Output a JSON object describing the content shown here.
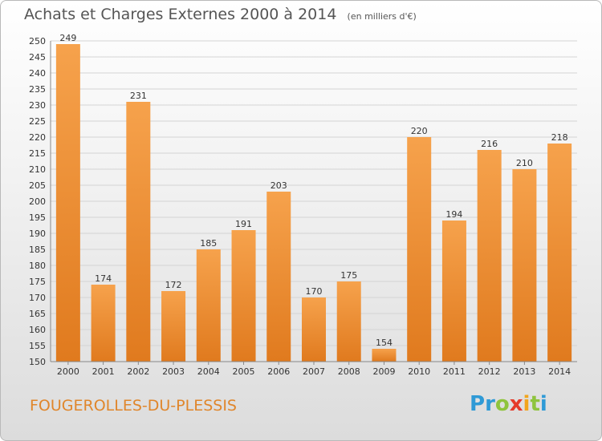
{
  "header": {
    "title": "Achats et Charges Externes 2000 à 2014",
    "unit": "(en milliers d'€)"
  },
  "footer": {
    "commune": "FOUGEROLLES-DU-PLESSIS",
    "brand_letters": [
      {
        "ch": "P",
        "color": "#2f9ad6"
      },
      {
        "ch": "r",
        "color": "#2f9ad6"
      },
      {
        "ch": "o",
        "color": "#8fc43d"
      },
      {
        "ch": "x",
        "color": "#e53a2a"
      },
      {
        "ch": "i",
        "color": "#f2a51c"
      },
      {
        "ch": "t",
        "color": "#8fc43d"
      },
      {
        "ch": "i",
        "color": "#2f9ad6"
      }
    ]
  },
  "colors": {
    "bar_top": "#f6a24c",
    "bar_bottom": "#e07a1e",
    "axis": "#888888",
    "grid": "#d4d4d4"
  },
  "chart_data": {
    "type": "bar",
    "categories": [
      "2000",
      "2001",
      "2002",
      "2003",
      "2004",
      "2005",
      "2006",
      "2007",
      "2008",
      "2009",
      "2010",
      "2011",
      "2012",
      "2013",
      "2014"
    ],
    "values": [
      249,
      174,
      231,
      172,
      185,
      191,
      203,
      170,
      175,
      154,
      220,
      194,
      216,
      210,
      218
    ],
    "ylim": [
      150,
      250
    ],
    "ytick_step": 5,
    "grid": true
  }
}
